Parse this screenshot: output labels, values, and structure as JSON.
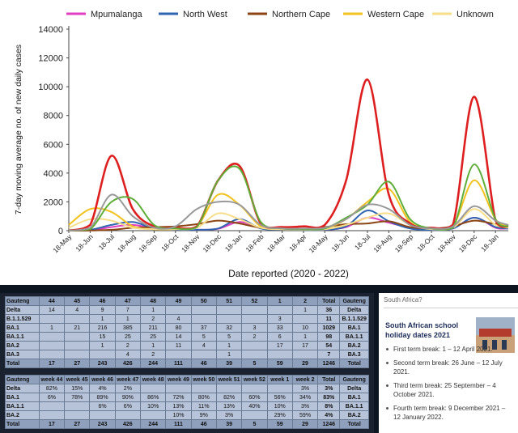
{
  "chart_data": {
    "type": "line",
    "title": "",
    "xlabel": "Date reported (2020 - 2022)",
    "ylabel": "7-day moving average no. of new daily cases",
    "ylim": [
      0,
      14000
    ],
    "yticks": [
      0,
      2000,
      4000,
      6000,
      8000,
      10000,
      12000,
      14000
    ],
    "x_tick_labels": [
      "18-May",
      "18-Jun",
      "18-Jul",
      "18-Aug",
      "18-Sep",
      "18-Oct",
      "18-Nov",
      "18-Dec",
      "18-Jan",
      "18-Feb",
      "18-Mar",
      "18-Apr",
      "18-May",
      "18-Jun",
      "18-Jul",
      "18-Aug",
      "18-Sep",
      "18-Oct",
      "18-Nov",
      "18-Dec",
      "18-Jan"
    ],
    "x_months": [
      0,
      1,
      2,
      3,
      4,
      5,
      6,
      7,
      8,
      9,
      10,
      11,
      12,
      13,
      14,
      15,
      16,
      17,
      18,
      19,
      20,
      20.6
    ],
    "grid": false,
    "legend_position": "top",
    "series": [
      {
        "name": "Mpumalanga",
        "color": "#e040c0",
        "values": [
          0,
          20,
          250,
          400,
          150,
          60,
          60,
          130,
          600,
          200,
          80,
          60,
          60,
          250,
          900,
          550,
          200,
          60,
          150,
          900,
          200,
          150
        ]
      },
      {
        "name": "North West",
        "color": "#2f64b0",
        "values": [
          20,
          60,
          400,
          600,
          150,
          60,
          60,
          150,
          800,
          150,
          70,
          50,
          60,
          300,
          1400,
          650,
          150,
          50,
          150,
          900,
          250,
          150
        ]
      },
      {
        "name": "Northern Cape",
        "color": "#8b4513",
        "values": [
          0,
          10,
          60,
          200,
          250,
          300,
          450,
          700,
          500,
          200,
          100,
          100,
          250,
          450,
          500,
          650,
          250,
          150,
          300,
          700,
          450,
          300
        ]
      },
      {
        "name": "Western Cape",
        "color": "#f2c21e",
        "values": [
          400,
          1500,
          1300,
          300,
          100,
          100,
          300,
          2500,
          1800,
          300,
          100,
          80,
          150,
          800,
          2000,
          2900,
          600,
          150,
          300,
          3500,
          800,
          400
        ]
      },
      {
        "name": "Unknown",
        "color": "#f7dd88",
        "values": [
          200,
          800,
          700,
          200,
          100,
          100,
          200,
          1200,
          800,
          200,
          100,
          80,
          100,
          400,
          900,
          1200,
          400,
          100,
          200,
          1500,
          400,
          200
        ]
      },
      {
        "name": "",
        "color": "#dd1f1f",
        "values": [
          10,
          400,
          5200,
          1500,
          300,
          200,
          300,
          3500,
          4500,
          500,
          250,
          300,
          400,
          3500,
          10500,
          2500,
          500,
          200,
          400,
          9300,
          700,
          300
        ]
      },
      {
        "name": "",
        "color": "#5fae3a",
        "values": [
          10,
          100,
          2000,
          2200,
          400,
          150,
          250,
          3500,
          4300,
          600,
          150,
          100,
          150,
          900,
          1800,
          3400,
          800,
          150,
          200,
          4600,
          800,
          300
        ]
      },
      {
        "name": "",
        "color": "#999999",
        "values": [
          10,
          200,
          2500,
          1000,
          200,
          300,
          1500,
          2000,
          1800,
          400,
          150,
          150,
          200,
          800,
          1800,
          1500,
          400,
          150,
          300,
          1700,
          700,
          400
        ]
      }
    ]
  },
  "tables": {
    "counts": {
      "header": [
        "Gauteng",
        "44",
        "45",
        "46",
        "47",
        "48",
        "49",
        "50",
        "51",
        "52",
        "1",
        "2",
        "Total",
        "Gauteng"
      ],
      "rows": [
        [
          "Delta",
          "14",
          "4",
          "9",
          "7",
          "1",
          "",
          "",
          "",
          "",
          "",
          "1",
          "36",
          "Delta"
        ],
        [
          "B.1.1.529",
          "",
          "",
          "1",
          "1",
          "2",
          "4",
          "",
          "",
          "",
          "3",
          "",
          "11",
          "B.1.1.529"
        ],
        [
          "BA.1",
          "1",
          "21",
          "216",
          "385",
          "211",
          "80",
          "37",
          "32",
          "3",
          "33",
          "10",
          "1029",
          "BA.1"
        ],
        [
          "BA.1.1",
          "",
          "",
          "15",
          "25",
          "25",
          "14",
          "5",
          "5",
          "2",
          "6",
          "1",
          "98",
          "BA.1.1"
        ],
        [
          "BA.2",
          "",
          "",
          "1",
          "2",
          "1",
          "11",
          "4",
          "1",
          "",
          "17",
          "17",
          "54",
          "BA.2"
        ],
        [
          "BA.3",
          "",
          "",
          "",
          "4",
          "2",
          "",
          "",
          "1",
          "",
          "",
          "",
          "7",
          "BA.3"
        ]
      ],
      "total": [
        "Total",
        "17",
        "27",
        "243",
        "426",
        "244",
        "111",
        "46",
        "39",
        "5",
        "59",
        "29",
        "1246",
        "Total"
      ]
    },
    "percent": {
      "header": [
        "Gauteng",
        "week 44",
        "week 45",
        "week 46",
        "week 47",
        "week 48",
        "week 49",
        "week 50",
        "week 51",
        "week 52",
        "week 1",
        "week 2",
        "Total",
        "Gauteng"
      ],
      "rows": [
        [
          "Delta",
          "82%",
          "15%",
          "4%",
          "2%",
          "",
          "",
          "",
          "",
          "",
          "",
          "3%",
          "3%",
          "Delta"
        ],
        [
          "BA.1",
          "6%",
          "78%",
          "89%",
          "90%",
          "86%",
          "72%",
          "80%",
          "82%",
          "60%",
          "56%",
          "34%",
          "83%",
          "BA.1"
        ],
        [
          "BA.1.1",
          "",
          "",
          "6%",
          "6%",
          "10%",
          "13%",
          "11%",
          "13%",
          "40%",
          "10%",
          "3%",
          "8%",
          "BA.1.1"
        ],
        [
          "BA.2",
          "",
          "",
          "",
          "",
          "",
          "10%",
          "9%",
          "3%",
          "",
          "29%",
          "59%",
          "4%",
          "BA.2"
        ]
      ],
      "total": [
        "Total",
        "17",
        "27",
        "243",
        "426",
        "244",
        "111",
        "46",
        "39",
        "5",
        "59",
        "29",
        "1246",
        "Total"
      ]
    }
  },
  "side": {
    "question": "South Africa?",
    "title": "South African school holiday dates 2021",
    "breaks": [
      "First term break: 1 – 12 April 2021.",
      "Second term break: 26 June – 12 July 2021.",
      "Third term break: 25 September – 4 October 2021.",
      "Fourth term break: 9 December 2021 – 12 January 2022."
    ]
  }
}
